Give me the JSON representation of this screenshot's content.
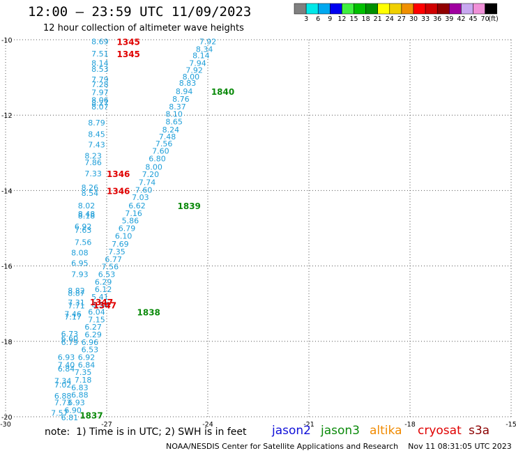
{
  "header": {
    "title": "12:00 — 23:59 UTC 11/09/2023",
    "subtitle": "12 hour collection of altimeter wave heights"
  },
  "legend_scale": {
    "labels": [
      "3",
      "6",
      "9",
      "12",
      "15",
      "18",
      "21",
      "24",
      "27",
      "30",
      "33",
      "36",
      "39",
      "42",
      "45",
      "70"
    ],
    "unit": "(ft)",
    "colors": [
      "#808080",
      "#00e8e8",
      "#00a8f0",
      "#0000f0",
      "#40f040",
      "#00c000",
      "#009000",
      "#ffff00",
      "#f0d000",
      "#f09000",
      "#ff0000",
      "#d00000",
      "#900000",
      "#a000a0",
      "#c8a8f0",
      "#f090d8",
      "#000000"
    ]
  },
  "footer": {
    "note": "note:  1) Time is in UTC; 2) SWH is in feet",
    "credit": "NOAA/NESDIS Center for Satellite Applications and Research    Nov 11 08:31:05 UTC 2023"
  },
  "satellites": [
    {
      "name": "jason2",
      "color": "#1010d8"
    },
    {
      "name": "jason3",
      "color": "#0b8a0b"
    },
    {
      "name": "altika",
      "color": "#f08a00"
    },
    {
      "name": "cryosat",
      "color": "#e00000"
    },
    {
      "name": "s3a",
      "color": "#8b0000"
    }
  ],
  "chart_data": {
    "type": "scatter",
    "x_ticks": [
      "-30",
      "-27",
      "-24",
      "-21",
      "-18",
      "-15"
    ],
    "y_ticks": [
      "-10",
      "-12",
      "-14",
      "-16",
      "-18",
      "-20"
    ],
    "xlim": [
      -30,
      -15
    ],
    "ylim": [
      -20,
      -10
    ],
    "grid": true,
    "point_color": "#1e9ed8",
    "series": [
      {
        "name": "track-west",
        "points": [
          {
            "x": -27.2,
            "y": -10.05,
            "label": "8.69"
          },
          {
            "x": -27.2,
            "y": -10.37,
            "label": "7.51"
          },
          {
            "x": -27.2,
            "y": -10.62,
            "label": "8.14"
          },
          {
            "x": -27.2,
            "y": -10.78,
            "label": "8.53"
          },
          {
            "x": -27.2,
            "y": -11.05,
            "label": "7.79"
          },
          {
            "x": -27.2,
            "y": -11.18,
            "label": "7.28"
          },
          {
            "x": -27.2,
            "y": -11.4,
            "label": "7.97"
          },
          {
            "x": -27.2,
            "y": -11.6,
            "label": "8.06"
          },
          {
            "x": -27.2,
            "y": -11.67,
            "label": "8.27"
          },
          {
            "x": -27.2,
            "y": -11.77,
            "label": "8.07"
          },
          {
            "x": -27.3,
            "y": -12.2,
            "label": "8.79"
          },
          {
            "x": -27.3,
            "y": -12.5,
            "label": "8.45"
          },
          {
            "x": -27.3,
            "y": -12.78,
            "label": "7.43"
          },
          {
            "x": -27.4,
            "y": -13.08,
            "label": "8.23"
          },
          {
            "x": -27.4,
            "y": -13.25,
            "label": "7.86"
          },
          {
            "x": -27.4,
            "y": -13.55,
            "label": "7.33"
          },
          {
            "x": -27.5,
            "y": -13.92,
            "label": "8.26"
          },
          {
            "x": -27.5,
            "y": -14.07,
            "label": "8.54"
          },
          {
            "x": -27.6,
            "y": -14.4,
            "label": "8.02"
          },
          {
            "x": -27.6,
            "y": -14.62,
            "label": "8.48"
          },
          {
            "x": -27.6,
            "y": -14.67,
            "label": "8.18"
          },
          {
            "x": -27.7,
            "y": -14.95,
            "label": "6.92"
          },
          {
            "x": -27.7,
            "y": -15.05,
            "label": "7.63"
          },
          {
            "x": -27.7,
            "y": -15.37,
            "label": "7.56"
          },
          {
            "x": -27.8,
            "y": -15.65,
            "label": "8.08"
          },
          {
            "x": -27.8,
            "y": -15.92,
            "label": "6.95"
          },
          {
            "x": -27.8,
            "y": -16.22,
            "label": "7.93"
          },
          {
            "x": -27.9,
            "y": -16.65,
            "label": "8.82"
          },
          {
            "x": -27.9,
            "y": -16.72,
            "label": "8.87"
          },
          {
            "x": -27.9,
            "y": -16.97,
            "label": "7.31"
          },
          {
            "x": -27.9,
            "y": -17.05,
            "label": "7.71"
          },
          {
            "x": -28.0,
            "y": -17.27,
            "label": "7.46"
          },
          {
            "x": -28.0,
            "y": -17.35,
            "label": "7.17"
          },
          {
            "x": -28.1,
            "y": -17.8,
            "label": "6.73"
          },
          {
            "x": -28.1,
            "y": -17.92,
            "label": "6.60"
          },
          {
            "x": -28.1,
            "y": -18.02,
            "label": "6.79"
          },
          {
            "x": -28.2,
            "y": -18.42,
            "label": "6.93"
          },
          {
            "x": -28.2,
            "y": -18.62,
            "label": "7.40"
          },
          {
            "x": -28.2,
            "y": -18.72,
            "label": "6.84"
          },
          {
            "x": -28.3,
            "y": -19.05,
            "label": "7.34"
          },
          {
            "x": -28.3,
            "y": -19.15,
            "label": "7.02"
          },
          {
            "x": -28.3,
            "y": -19.45,
            "label": "6.88"
          },
          {
            "x": -28.3,
            "y": -19.62,
            "label": "7.73"
          },
          {
            "x": -28.4,
            "y": -19.9,
            "label": "7.57"
          }
        ]
      },
      {
        "name": "track-east",
        "points": [
          {
            "x": -24.0,
            "y": -10.05,
            "label": "7.92"
          },
          {
            "x": -24.1,
            "y": -10.25,
            "label": "8.34"
          },
          {
            "x": -24.2,
            "y": -10.42,
            "label": "8.14"
          },
          {
            "x": -24.3,
            "y": -10.62,
            "label": "7.94"
          },
          {
            "x": -24.4,
            "y": -10.8,
            "label": "7.92"
          },
          {
            "x": -24.5,
            "y": -10.98,
            "label": "8.00"
          },
          {
            "x": -24.6,
            "y": -11.15,
            "label": "8.83"
          },
          {
            "x": -24.7,
            "y": -11.37,
            "label": "8.94"
          },
          {
            "x": -24.8,
            "y": -11.57,
            "label": "8.76"
          },
          {
            "x": -24.9,
            "y": -11.77,
            "label": "8.37"
          },
          {
            "x": -25.0,
            "y": -11.97,
            "label": "8.10"
          },
          {
            "x": -25.0,
            "y": -12.17,
            "label": "8.65"
          },
          {
            "x": -25.1,
            "y": -12.38,
            "label": "8.24"
          },
          {
            "x": -25.2,
            "y": -12.57,
            "label": "7.48"
          },
          {
            "x": -25.3,
            "y": -12.75,
            "label": "7.56"
          },
          {
            "x": -25.4,
            "y": -12.95,
            "label": "7.60"
          },
          {
            "x": -25.5,
            "y": -13.15,
            "label": "6.80"
          },
          {
            "x": -25.6,
            "y": -13.37,
            "label": "8.00"
          },
          {
            "x": -25.7,
            "y": -13.57,
            "label": "7.20"
          },
          {
            "x": -25.8,
            "y": -13.78,
            "label": "7.74"
          },
          {
            "x": -25.9,
            "y": -13.98,
            "label": "7.60"
          },
          {
            "x": -26.0,
            "y": -14.18,
            "label": "7.03"
          },
          {
            "x": -26.1,
            "y": -14.4,
            "label": "6.62"
          },
          {
            "x": -26.2,
            "y": -14.6,
            "label": "7.16"
          },
          {
            "x": -26.3,
            "y": -14.8,
            "label": "5.86"
          },
          {
            "x": -26.4,
            "y": -15.0,
            "label": "6.79"
          },
          {
            "x": -26.5,
            "y": -15.2,
            "label": "6.10"
          },
          {
            "x": -26.6,
            "y": -15.42,
            "label": "7.69"
          },
          {
            "x": -26.7,
            "y": -15.62,
            "label": "7.35"
          },
          {
            "x": -26.8,
            "y": -15.82,
            "label": "6.77"
          },
          {
            "x": -26.9,
            "y": -16.02,
            "label": "7.56"
          },
          {
            "x": -27.0,
            "y": -16.22,
            "label": "6.53"
          },
          {
            "x": -27.1,
            "y": -16.42,
            "label": "6.29"
          },
          {
            "x": -27.1,
            "y": -16.62,
            "label": "6.12"
          },
          {
            "x": -27.2,
            "y": -16.82,
            "label": "5.41"
          },
          {
            "x": -27.2,
            "y": -17.02,
            "label": "6.50"
          },
          {
            "x": -27.3,
            "y": -17.22,
            "label": "6.04"
          },
          {
            "x": -27.3,
            "y": -17.42,
            "label": "7.15"
          },
          {
            "x": -27.4,
            "y": -17.62,
            "label": "6.27"
          },
          {
            "x": -27.4,
            "y": -17.82,
            "label": "6.29"
          },
          {
            "x": -27.5,
            "y": -18.02,
            "label": "6.96"
          },
          {
            "x": -27.5,
            "y": -18.22,
            "label": "6.53"
          },
          {
            "x": -27.6,
            "y": -18.42,
            "label": "6.92"
          },
          {
            "x": -27.6,
            "y": -18.62,
            "label": "6.84"
          },
          {
            "x": -27.7,
            "y": -18.82,
            "label": "7.35"
          },
          {
            "x": -27.7,
            "y": -19.02,
            "label": "7.18"
          },
          {
            "x": -27.8,
            "y": -19.22,
            "label": "6.83"
          },
          {
            "x": -27.8,
            "y": -19.42,
            "label": "6.88"
          },
          {
            "x": -27.9,
            "y": -19.62,
            "label": "6.93"
          },
          {
            "x": -28.0,
            "y": -19.82,
            "label": "6.90"
          },
          {
            "x": -28.1,
            "y": -20.02,
            "label": "6.81"
          }
        ]
      }
    ],
    "time_labels": [
      {
        "x": -26.7,
        "y": -10.05,
        "text": "1345",
        "color": "#e00000"
      },
      {
        "x": -26.7,
        "y": -10.37,
        "text": "1345",
        "color": "#e00000"
      },
      {
        "x": -27.0,
        "y": -13.55,
        "text": "1346",
        "color": "#e00000"
      },
      {
        "x": -27.0,
        "y": -14.0,
        "text": "1346",
        "color": "#e00000"
      },
      {
        "x": -27.5,
        "y": -16.95,
        "text": "1347",
        "color": "#e00000"
      },
      {
        "x": -27.4,
        "y": -17.03,
        "text": "1347",
        "color": "#e00000"
      },
      {
        "x": -23.9,
        "y": -11.37,
        "text": "1840",
        "color": "#0b8a0b"
      },
      {
        "x": -24.9,
        "y": -14.4,
        "text": "1839",
        "color": "#0b8a0b"
      },
      {
        "x": -26.1,
        "y": -17.22,
        "text": "1838",
        "color": "#0b8a0b"
      },
      {
        "x": -27.8,
        "y": -19.95,
        "text": "1837",
        "color": "#0b8a0b"
      }
    ]
  }
}
